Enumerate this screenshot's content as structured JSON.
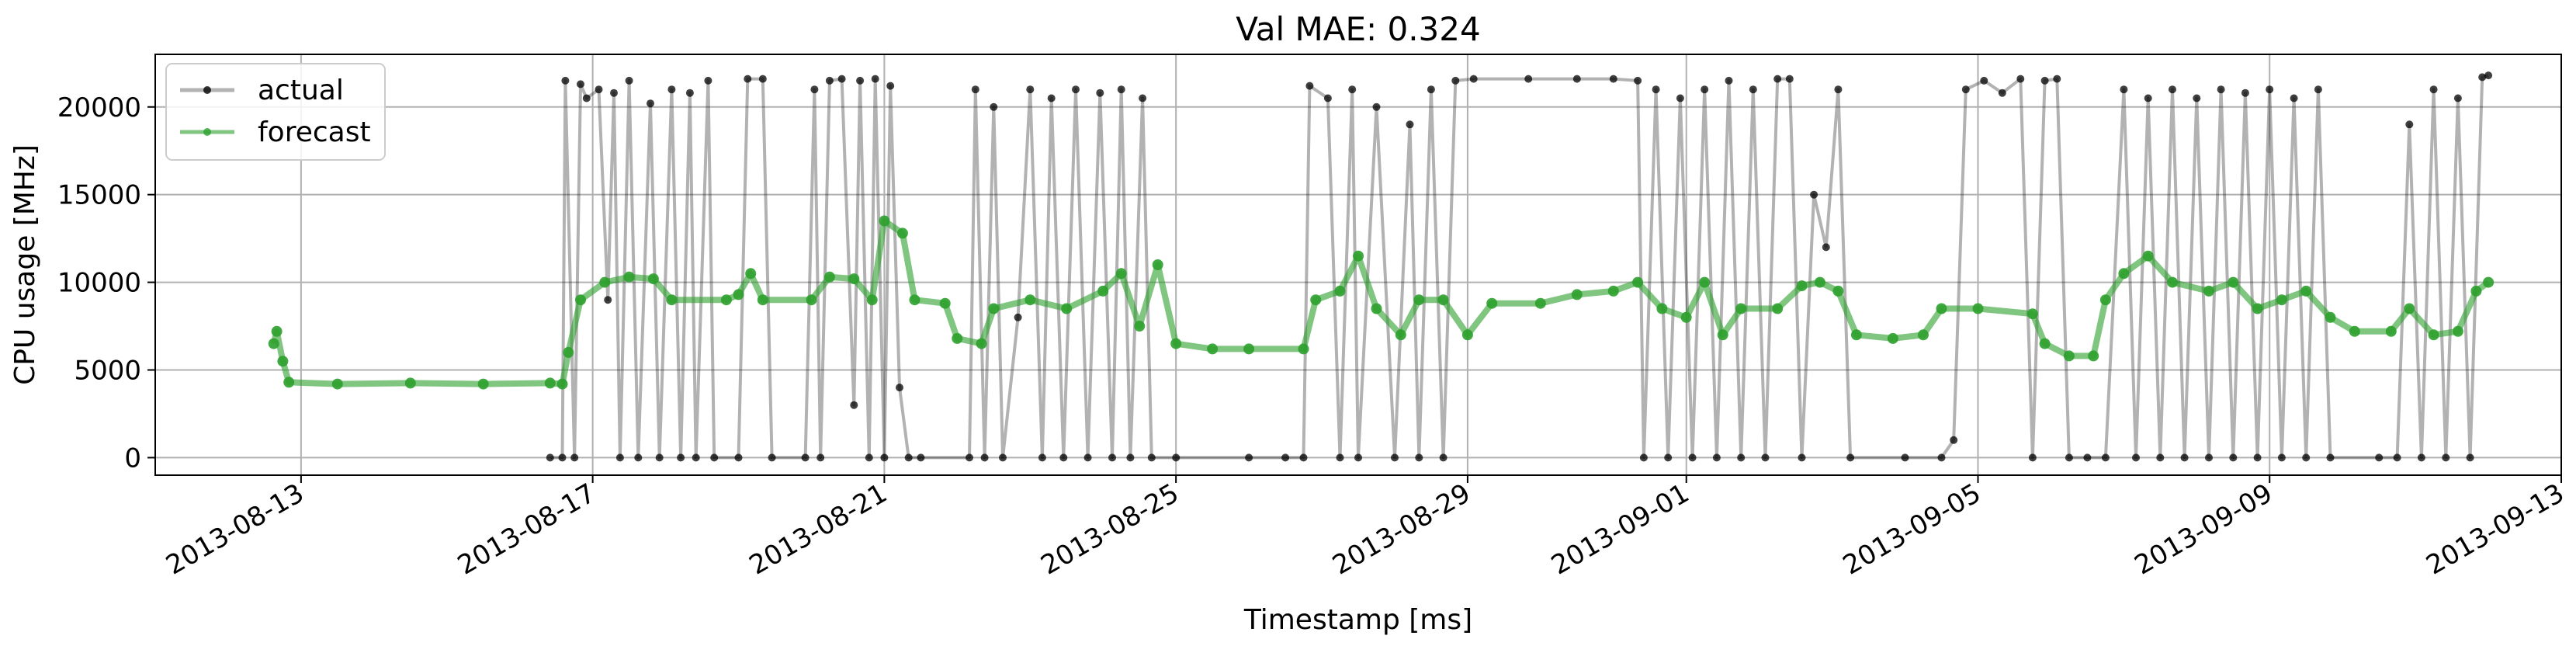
{
  "chart_data": {
    "type": "line",
    "title": "Val MAE: 0.324",
    "xlabel": "Timestamp [ms]",
    "ylabel": "CPU usage [MHz]",
    "x_type": "date",
    "xlim": [
      "2013-08-11",
      "2013-09-13"
    ],
    "ylim": [
      -1000,
      23000
    ],
    "grid": true,
    "legend_position": "top-left",
    "x_ticks": [
      "2013-08-13",
      "2013-08-17",
      "2013-08-21",
      "2013-08-25",
      "2013-08-29",
      "2013-09-01",
      "2013-09-05",
      "2013-09-09",
      "2013-09-13"
    ],
    "y_ticks": [
      0,
      5000,
      10000,
      15000,
      20000
    ],
    "series": [
      {
        "name": "actual",
        "color": "#000000",
        "opacity": 0.3,
        "marker": "dot",
        "values": [
          [
            "2013-08-16T10:00",
            0
          ],
          [
            "2013-08-16T14:00",
            0
          ],
          [
            "2013-08-16T15:00",
            21500
          ],
          [
            "2013-08-16T18:00",
            0
          ],
          [
            "2013-08-16T20:00",
            21300
          ],
          [
            "2013-08-16T22:00",
            20500
          ],
          [
            "2013-08-17T02:00",
            21000
          ],
          [
            "2013-08-17T05:00",
            9000
          ],
          [
            "2013-08-17T07:00",
            20800
          ],
          [
            "2013-08-17T09:00",
            0
          ],
          [
            "2013-08-17T12:00",
            21500
          ],
          [
            "2013-08-17T15:00",
            0
          ],
          [
            "2013-08-17T19:00",
            20200
          ],
          [
            "2013-08-17T22:00",
            0
          ],
          [
            "2013-08-18T02:00",
            21000
          ],
          [
            "2013-08-18T05:00",
            0
          ],
          [
            "2013-08-18T08:00",
            20800
          ],
          [
            "2013-08-18T10:00",
            0
          ],
          [
            "2013-08-18T14:00",
            21500
          ],
          [
            "2013-08-18T16:00",
            0
          ],
          [
            "2013-08-19T00:00",
            0
          ],
          [
            "2013-08-19T03:00",
            21600
          ],
          [
            "2013-08-19T08:00",
            21600
          ],
          [
            "2013-08-19T11:00",
            0
          ],
          [
            "2013-08-19T22:00",
            0
          ],
          [
            "2013-08-20T01:00",
            21000
          ],
          [
            "2013-08-20T03:00",
            0
          ],
          [
            "2013-08-20T06:00",
            21500
          ],
          [
            "2013-08-20T10:00",
            21600
          ],
          [
            "2013-08-20T14:00",
            3000
          ],
          [
            "2013-08-20T16:00",
            21500
          ],
          [
            "2013-08-20T19:00",
            0
          ],
          [
            "2013-08-20T21:00",
            21600
          ],
          [
            "2013-08-21T00:00",
            0
          ],
          [
            "2013-08-21T02:00",
            21200
          ],
          [
            "2013-08-21T05:00",
            4000
          ],
          [
            "2013-08-21T08:00",
            0
          ],
          [
            "2013-08-21T12:00",
            0
          ],
          [
            "2013-08-22T04:00",
            0
          ],
          [
            "2013-08-22T06:00",
            21000
          ],
          [
            "2013-08-22T09:00",
            0
          ],
          [
            "2013-08-22T12:00",
            20000
          ],
          [
            "2013-08-22T15:00",
            0
          ],
          [
            "2013-08-22T20:00",
            8000
          ],
          [
            "2013-08-23T00:00",
            21000
          ],
          [
            "2013-08-23T04:00",
            0
          ],
          [
            "2013-08-23T07:00",
            20500
          ],
          [
            "2013-08-23T11:00",
            0
          ],
          [
            "2013-08-23T15:00",
            21000
          ],
          [
            "2013-08-23T19:00",
            0
          ],
          [
            "2013-08-23T23:00",
            20800
          ],
          [
            "2013-08-24T03:00",
            0
          ],
          [
            "2013-08-24T06:00",
            21000
          ],
          [
            "2013-08-24T09:00",
            0
          ],
          [
            "2013-08-24T13:00",
            20500
          ],
          [
            "2013-08-24T16:00",
            0
          ],
          [
            "2013-08-25T00:00",
            0
          ],
          [
            "2013-08-26T00:00",
            0
          ],
          [
            "2013-08-26T12:00",
            0
          ],
          [
            "2013-08-26T18:00",
            0
          ],
          [
            "2013-08-26T20:00",
            21200
          ],
          [
            "2013-08-27T02:00",
            20500
          ],
          [
            "2013-08-27T06:00",
            0
          ],
          [
            "2013-08-27T10:00",
            21000
          ],
          [
            "2013-08-27T12:00",
            0
          ],
          [
            "2013-08-27T18:00",
            20000
          ],
          [
            "2013-08-28T00:00",
            0
          ],
          [
            "2013-08-28T05:00",
            19000
          ],
          [
            "2013-08-28T08:00",
            0
          ],
          [
            "2013-08-28T12:00",
            21000
          ],
          [
            "2013-08-28T16:00",
            0
          ],
          [
            "2013-08-28T20:00",
            21500
          ],
          [
            "2013-08-29T02:00",
            21600
          ],
          [
            "2013-08-29T20:00",
            21600
          ],
          [
            "2013-08-30T12:00",
            21600
          ],
          [
            "2013-08-31T00:00",
            21600
          ],
          [
            "2013-08-31T08:00",
            21500
          ],
          [
            "2013-08-31T10:00",
            0
          ],
          [
            "2013-08-31T14:00",
            21000
          ],
          [
            "2013-08-31T18:00",
            0
          ],
          [
            "2013-08-31T22:00",
            20500
          ],
          [
            "2013-09-01T02:00",
            0
          ],
          [
            "2013-09-01T06:00",
            21000
          ],
          [
            "2013-09-01T10:00",
            0
          ],
          [
            "2013-09-01T14:00",
            21500
          ],
          [
            "2013-09-01T18:00",
            0
          ],
          [
            "2013-09-01T22:00",
            21000
          ],
          [
            "2013-09-02T02:00",
            0
          ],
          [
            "2013-09-02T06:00",
            21600
          ],
          [
            "2013-09-02T10:00",
            21600
          ],
          [
            "2013-09-02T14:00",
            0
          ],
          [
            "2013-09-02T18:00",
            15000
          ],
          [
            "2013-09-02T22:00",
            12000
          ],
          [
            "2013-09-03T02:00",
            21000
          ],
          [
            "2013-09-03T06:00",
            0
          ],
          [
            "2013-09-04T00:00",
            0
          ],
          [
            "2013-09-04T12:00",
            0
          ],
          [
            "2013-09-04T16:00",
            1000
          ],
          [
            "2013-09-04T20:00",
            21000
          ],
          [
            "2013-09-05T02:00",
            21500
          ],
          [
            "2013-09-05T08:00",
            20800
          ],
          [
            "2013-09-05T14:00",
            21600
          ],
          [
            "2013-09-05T18:00",
            0
          ],
          [
            "2013-09-05T22:00",
            21500
          ],
          [
            "2013-09-06T02:00",
            21600
          ],
          [
            "2013-09-06T06:00",
            0
          ],
          [
            "2013-09-06T12:00",
            0
          ],
          [
            "2013-09-06T18:00",
            0
          ],
          [
            "2013-09-07T00:00",
            21000
          ],
          [
            "2013-09-07T04:00",
            0
          ],
          [
            "2013-09-07T08:00",
            20500
          ],
          [
            "2013-09-07T12:00",
            0
          ],
          [
            "2013-09-07T16:00",
            21000
          ],
          [
            "2013-09-07T20:00",
            0
          ],
          [
            "2013-09-08T00:00",
            20500
          ],
          [
            "2013-09-08T04:00",
            0
          ],
          [
            "2013-09-08T08:00",
            21000
          ],
          [
            "2013-09-08T12:00",
            0
          ],
          [
            "2013-09-08T16:00",
            20800
          ],
          [
            "2013-09-08T20:00",
            0
          ],
          [
            "2013-09-09T00:00",
            21000
          ],
          [
            "2013-09-09T04:00",
            0
          ],
          [
            "2013-09-09T08:00",
            20500
          ],
          [
            "2013-09-09T12:00",
            0
          ],
          [
            "2013-09-09T16:00",
            21000
          ],
          [
            "2013-09-09T20:00",
            0
          ],
          [
            "2013-09-10T12:00",
            0
          ],
          [
            "2013-09-10T18:00",
            0
          ],
          [
            "2013-09-10T22:00",
            19000
          ],
          [
            "2013-09-11T02:00",
            0
          ],
          [
            "2013-09-11T06:00",
            21000
          ],
          [
            "2013-09-11T10:00",
            0
          ],
          [
            "2013-09-11T14:00",
            20500
          ],
          [
            "2013-09-11T18:00",
            0
          ],
          [
            "2013-09-11T22:00",
            21700
          ],
          [
            "2013-09-12T00:00",
            21800
          ]
        ]
      },
      {
        "name": "forecast",
        "color": "#2ca02c",
        "opacity": 0.6,
        "marker": "dot",
        "values": [
          [
            "2013-08-12T15:00",
            6500
          ],
          [
            "2013-08-12T16:00",
            7200
          ],
          [
            "2013-08-12T18:00",
            5500
          ],
          [
            "2013-08-12T20:00",
            4300
          ],
          [
            "2013-08-13T12:00",
            4200
          ],
          [
            "2013-08-14T12:00",
            4250
          ],
          [
            "2013-08-15T12:00",
            4200
          ],
          [
            "2013-08-16T10:00",
            4250
          ],
          [
            "2013-08-16T14:00",
            4200
          ],
          [
            "2013-08-16T16:00",
            6000
          ],
          [
            "2013-08-16T20:00",
            9000
          ],
          [
            "2013-08-17T04:00",
            10000
          ],
          [
            "2013-08-17T12:00",
            10300
          ],
          [
            "2013-08-17T20:00",
            10200
          ],
          [
            "2013-08-18T02:00",
            9000
          ],
          [
            "2013-08-18T20:00",
            9000
          ],
          [
            "2013-08-19T00:00",
            9300
          ],
          [
            "2013-08-19T04:00",
            10500
          ],
          [
            "2013-08-19T08:00",
            9000
          ],
          [
            "2013-08-20T00:00",
            9000
          ],
          [
            "2013-08-20T06:00",
            10300
          ],
          [
            "2013-08-20T14:00",
            10200
          ],
          [
            "2013-08-20T20:00",
            9000
          ],
          [
            "2013-08-21T00:00",
            13500
          ],
          [
            "2013-08-21T06:00",
            12800
          ],
          [
            "2013-08-21T10:00",
            9000
          ],
          [
            "2013-08-21T20:00",
            8800
          ],
          [
            "2013-08-22T00:00",
            6800
          ],
          [
            "2013-08-22T08:00",
            6500
          ],
          [
            "2013-08-22T12:00",
            8500
          ],
          [
            "2013-08-23T00:00",
            9000
          ],
          [
            "2013-08-23T12:00",
            8500
          ],
          [
            "2013-08-24T00:00",
            9500
          ],
          [
            "2013-08-24T06:00",
            10500
          ],
          [
            "2013-08-24T12:00",
            7500
          ],
          [
            "2013-08-24T18:00",
            11000
          ],
          [
            "2013-08-25T00:00",
            6500
          ],
          [
            "2013-08-25T12:00",
            6200
          ],
          [
            "2013-08-26T00:00",
            6200
          ],
          [
            "2013-08-26T18:00",
            6200
          ],
          [
            "2013-08-26T22:00",
            9000
          ],
          [
            "2013-08-27T06:00",
            9500
          ],
          [
            "2013-08-27T12:00",
            11500
          ],
          [
            "2013-08-27T18:00",
            8500
          ],
          [
            "2013-08-28T02:00",
            7000
          ],
          [
            "2013-08-28T08:00",
            9000
          ],
          [
            "2013-08-28T16:00",
            9000
          ],
          [
            "2013-08-29T00:00",
            7000
          ],
          [
            "2013-08-29T08:00",
            8800
          ],
          [
            "2013-08-30T00:00",
            8800
          ],
          [
            "2013-08-30T12:00",
            9300
          ],
          [
            "2013-08-31T00:00",
            9500
          ],
          [
            "2013-08-31T08:00",
            10000
          ],
          [
            "2013-08-31T16:00",
            8500
          ],
          [
            "2013-09-01T00:00",
            8000
          ],
          [
            "2013-09-01T06:00",
            10000
          ],
          [
            "2013-09-01T12:00",
            7000
          ],
          [
            "2013-09-01T18:00",
            8500
          ],
          [
            "2013-09-02T06:00",
            8500
          ],
          [
            "2013-09-02T14:00",
            9800
          ],
          [
            "2013-09-02T20:00",
            10000
          ],
          [
            "2013-09-03T02:00",
            9500
          ],
          [
            "2013-09-03T08:00",
            7000
          ],
          [
            "2013-09-03T20:00",
            6800
          ],
          [
            "2013-09-04T06:00",
            7000
          ],
          [
            "2013-09-04T12:00",
            8500
          ],
          [
            "2013-09-05T00:00",
            8500
          ],
          [
            "2013-09-05T18:00",
            8200
          ],
          [
            "2013-09-05T22:00",
            6500
          ],
          [
            "2013-09-06T06:00",
            5800
          ],
          [
            "2013-09-06T14:00",
            5800
          ],
          [
            "2013-09-06T18:00",
            9000
          ],
          [
            "2013-09-07T00:00",
            10500
          ],
          [
            "2013-09-07T08:00",
            11500
          ],
          [
            "2013-09-07T16:00",
            10000
          ],
          [
            "2013-09-08T04:00",
            9500
          ],
          [
            "2013-09-08T12:00",
            10000
          ],
          [
            "2013-09-08T20:00",
            8500
          ],
          [
            "2013-09-09T04:00",
            9000
          ],
          [
            "2013-09-09T12:00",
            9500
          ],
          [
            "2013-09-09T20:00",
            8000
          ],
          [
            "2013-09-10T04:00",
            7200
          ],
          [
            "2013-09-10T16:00",
            7200
          ],
          [
            "2013-09-10T22:00",
            8500
          ],
          [
            "2013-09-11T06:00",
            7000
          ],
          [
            "2013-09-11T14:00",
            7200
          ],
          [
            "2013-09-11T20:00",
            9500
          ],
          [
            "2013-09-12T00:00",
            10000
          ]
        ]
      }
    ]
  }
}
